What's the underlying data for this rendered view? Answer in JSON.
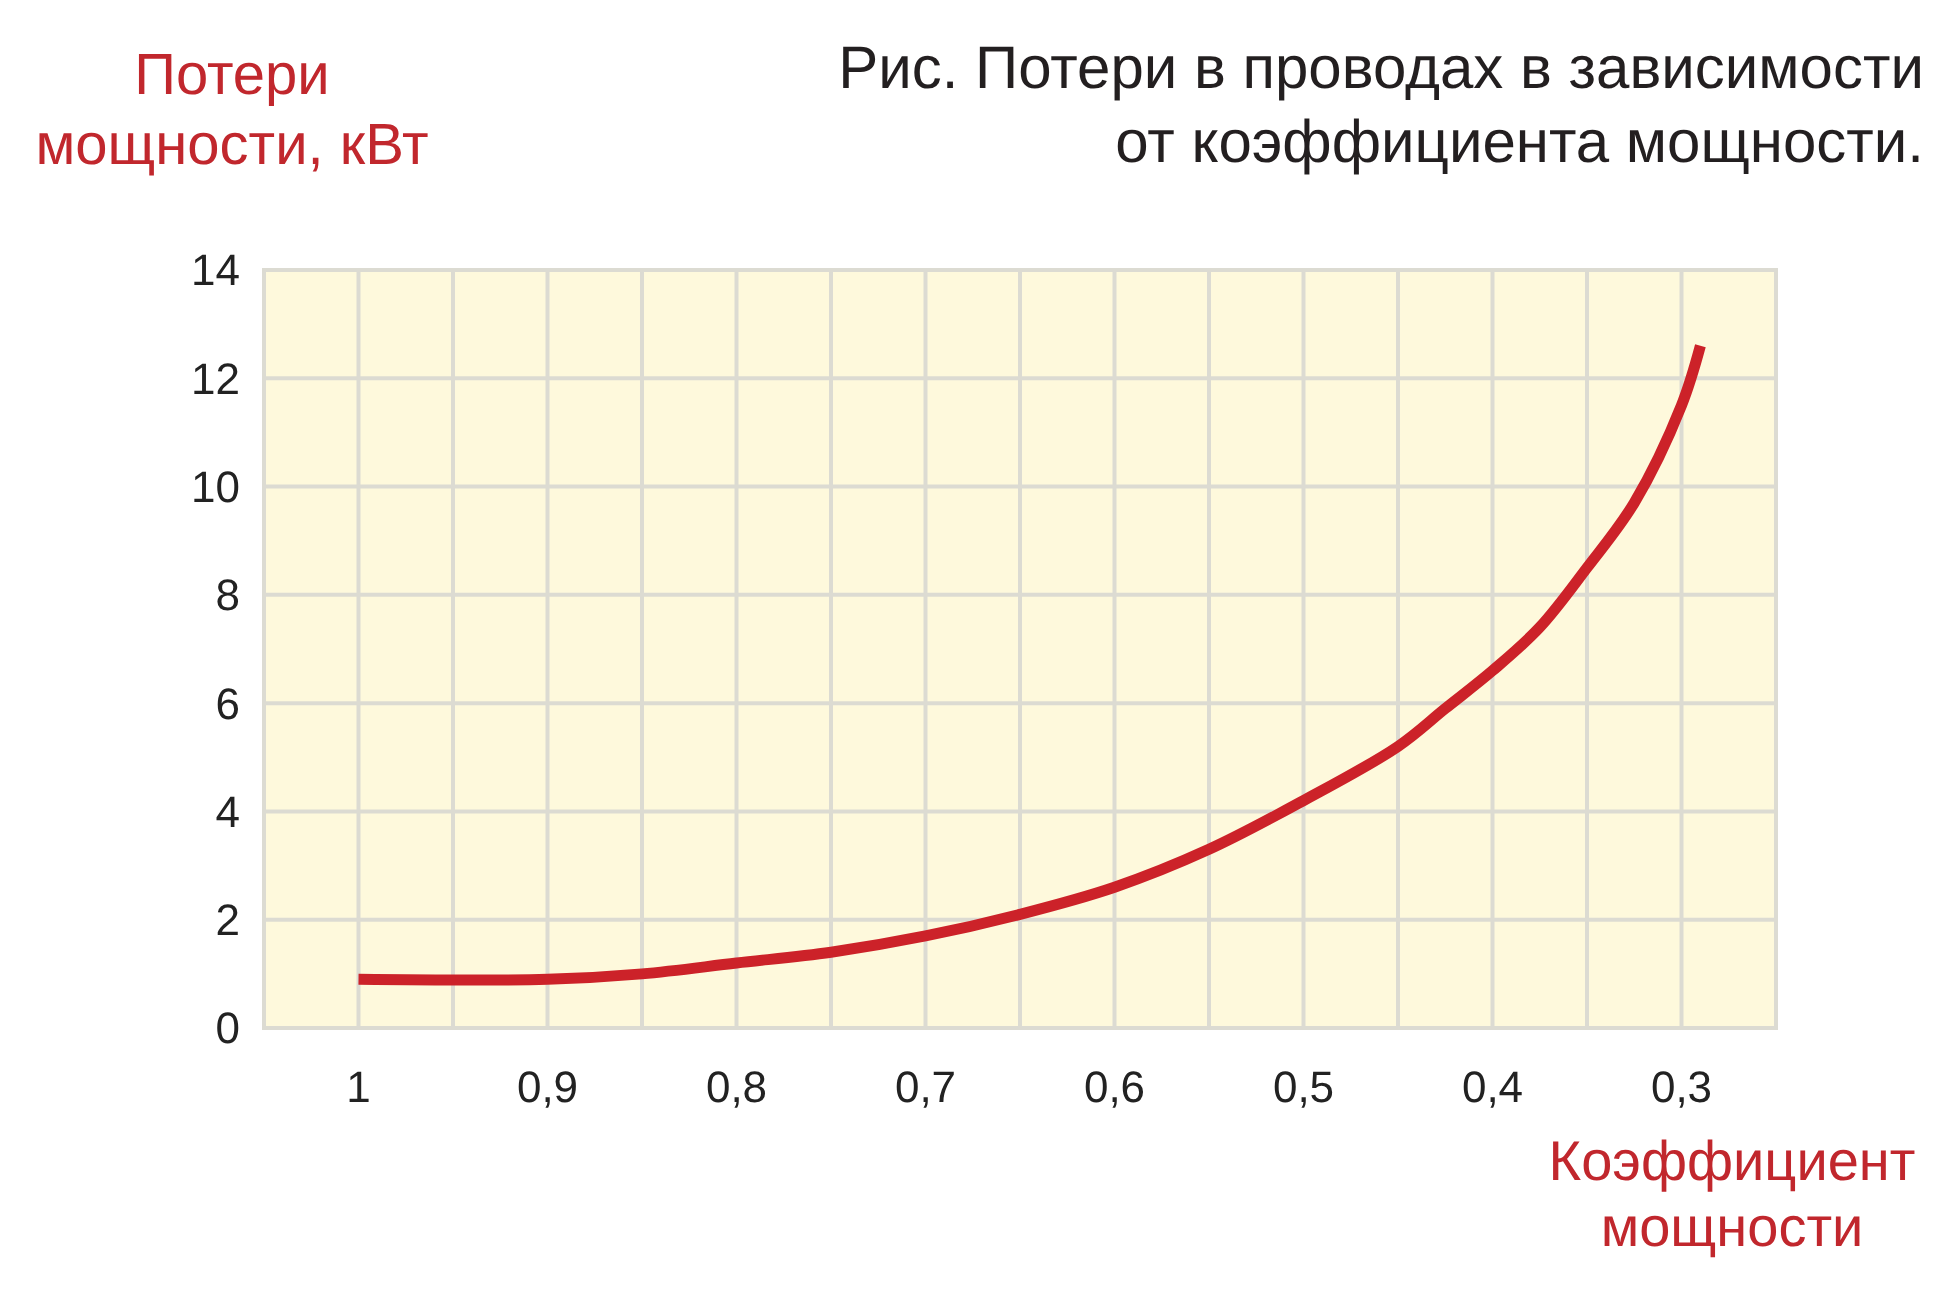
{
  "chart_data": {
    "type": "line",
    "title": "Рис. Потери в проводах в зависимости\nот коэффициента мощности.",
    "xlabel": "Коэффициент\nмощности",
    "ylabel": "Потери\nмощности, кВт",
    "x": [
      1,
      0.9,
      0.85,
      0.8,
      0.75,
      0.7,
      0.65,
      0.6,
      0.55,
      0.5,
      0.45,
      0.425,
      0.4,
      0.375,
      0.35,
      0.325,
      0.3,
      0.29
    ],
    "values": [
      0.9,
      0.9,
      1.0,
      1.2,
      1.4,
      1.7,
      2.1,
      2.6,
      3.3,
      4.2,
      5.2,
      5.9,
      6.6,
      7.4,
      8.5,
      9.7,
      11.5,
      12.6
    ],
    "color": "#cc2229",
    "xlim": [
      1.05,
      0.25
    ],
    "xticks": [
      1,
      {
        "value": 0.95,
        "label": null
      },
      {
        "value": 0.9,
        "label": "0,9"
      },
      {
        "value": 0.85,
        "label": null
      },
      {
        "value": 0.8,
        "label": "0,8"
      },
      {
        "value": 0.75,
        "label": null
      },
      {
        "value": 0.7,
        "label": "0,7"
      },
      {
        "value": 0.65,
        "label": null
      },
      {
        "value": 0.6,
        "label": "0,6"
      },
      {
        "value": 0.55,
        "label": null
      },
      {
        "value": 0.5,
        "label": "0,5"
      },
      {
        "value": 0.45,
        "label": null
      },
      {
        "value": 0.4,
        "label": "0,4"
      },
      {
        "value": 0.35,
        "label": null
      },
      {
        "value": 0.3,
        "label": "0,3"
      }
    ],
    "ylim": [
      0,
      14
    ],
    "yticks": [
      0,
      2,
      4,
      6,
      8,
      10,
      12,
      14
    ],
    "grid": true
  }
}
